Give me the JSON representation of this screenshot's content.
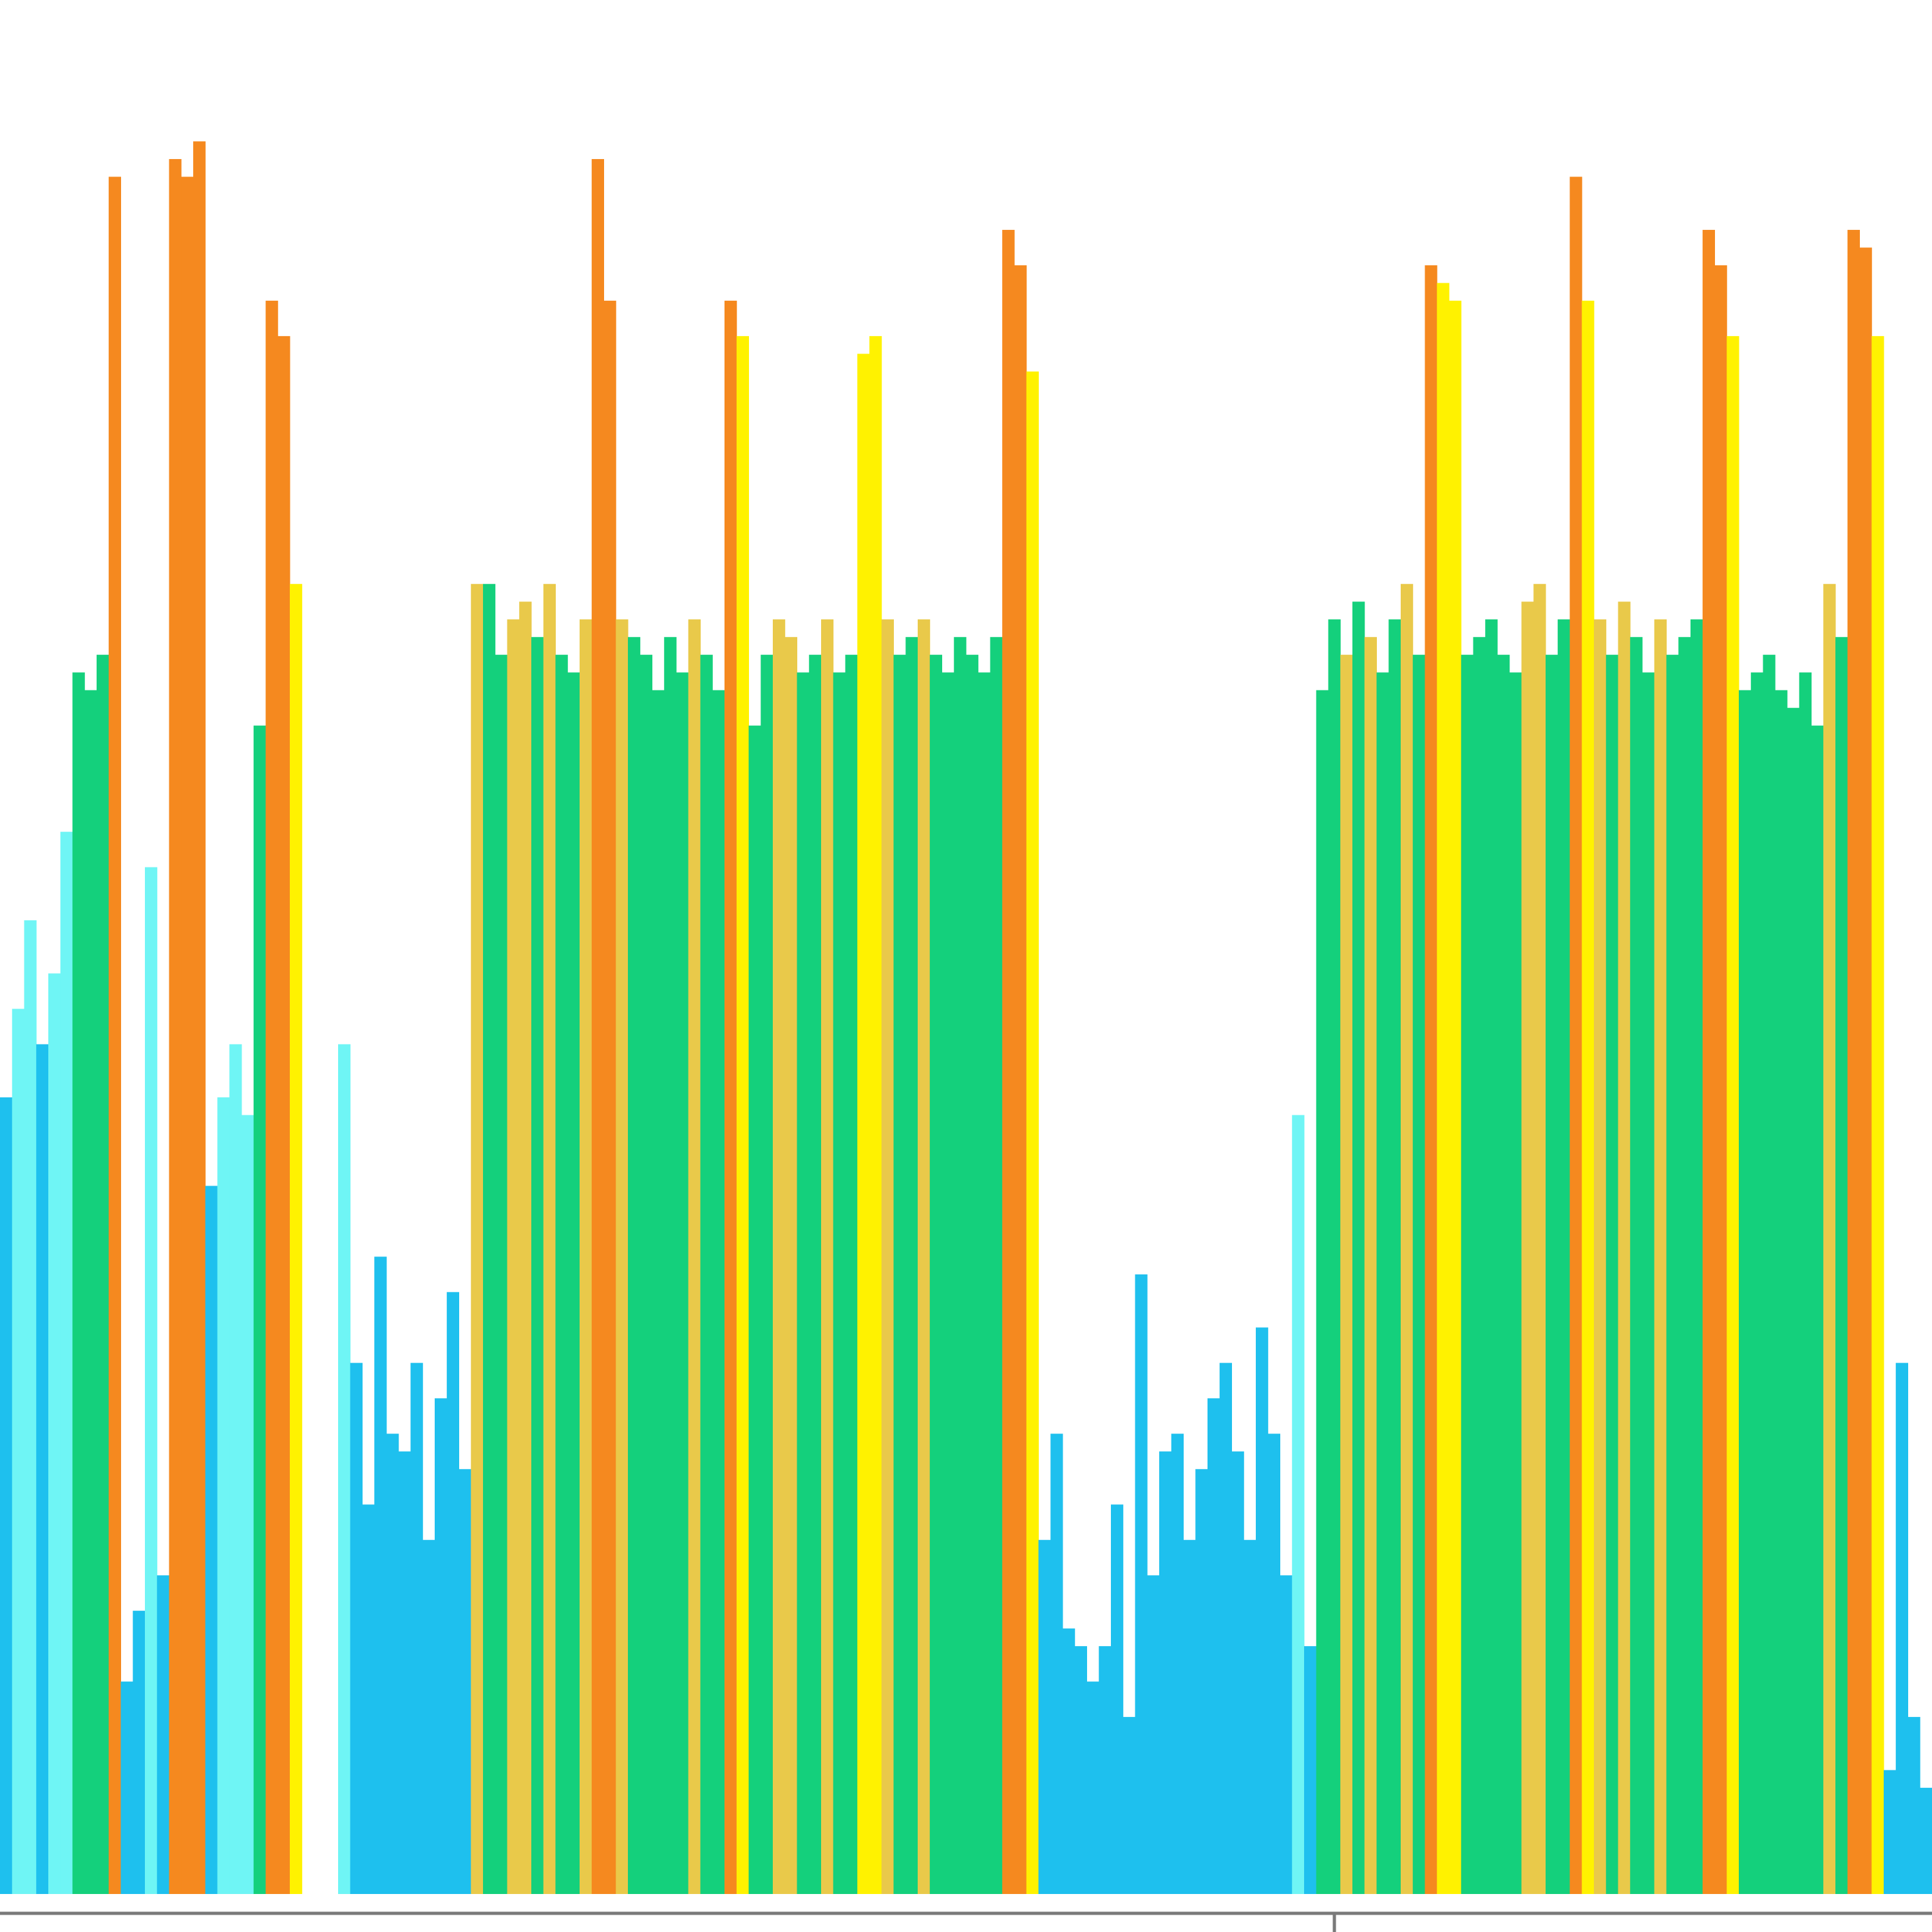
{
  "chart_data": {
    "type": "bar",
    "ylim": [
      0,
      100
    ],
    "values": [
      45,
      50,
      55,
      48,
      52,
      60,
      69,
      68,
      70,
      97,
      12,
      16,
      58,
      18,
      98,
      97,
      99,
      40,
      45,
      48,
      44,
      66,
      90,
      88,
      74,
      0,
      0,
      0,
      48,
      30,
      22,
      36,
      26,
      25,
      30,
      20,
      28,
      34,
      24,
      74,
      74,
      70,
      72,
      73,
      71,
      74,
      70,
      69,
      72,
      98,
      90,
      72,
      71,
      70,
      68,
      71,
      69,
      72,
      70,
      68,
      90,
      88,
      66,
      70,
      72,
      71,
      69,
      70,
      72,
      69,
      70,
      87,
      88,
      72,
      70,
      71,
      72,
      70,
      69,
      71,
      70,
      69,
      71,
      94,
      92,
      86,
      20,
      26,
      15,
      14,
      12,
      14,
      22,
      10,
      35,
      18,
      25,
      26,
      20,
      24,
      28,
      30,
      25,
      20,
      32,
      26,
      18,
      44,
      14,
      68,
      72,
      70,
      73,
      71,
      69,
      72,
      74,
      70,
      92,
      91,
      90,
      70,
      71,
      72,
      70,
      69,
      73,
      74,
      70,
      72,
      97,
      90,
      72,
      70,
      73,
      71,
      69,
      72,
      70,
      71,
      72,
      94,
      92,
      88,
      68,
      69,
      70,
      68,
      67,
      69,
      66,
      74,
      71,
      94,
      93,
      88,
      7,
      30,
      10,
      6
    ],
    "colors": [
      "#1ec0ee",
      "#6ff5f5",
      "#6ff5f5",
      "#1ec0ee",
      "#6ff5f5",
      "#6ff5f5",
      "#14d07c",
      "#14d07c",
      "#14d07c",
      "#f5891f",
      "#1ec0ee",
      "#1ec0ee",
      "#6ff5f5",
      "#1ec0ee",
      "#f5891f",
      "#f5891f",
      "#f5891f",
      "#1ec0ee",
      "#6ff5f5",
      "#6ff5f5",
      "#6ff5f5",
      "#14d07c",
      "#f5891f",
      "#f5891f",
      "#fff200",
      "#1ec0ee",
      "#1ec0ee",
      "#1ec0ee",
      "#6ff5f5",
      "#1ec0ee",
      "#1ec0ee",
      "#1ec0ee",
      "#1ec0ee",
      "#1ec0ee",
      "#1ec0ee",
      "#1ec0ee",
      "#1ec0ee",
      "#1ec0ee",
      "#1ec0ee",
      "#e9c94a",
      "#14d07c",
      "#14d07c",
      "#e9c94a",
      "#e9c94a",
      "#14d07c",
      "#e9c94a",
      "#14d07c",
      "#14d07c",
      "#e9c94a",
      "#f5891f",
      "#f5891f",
      "#e9c94a",
      "#14d07c",
      "#14d07c",
      "#14d07c",
      "#14d07c",
      "#14d07c",
      "#e9c94a",
      "#14d07c",
      "#14d07c",
      "#f5891f",
      "#fff200",
      "#14d07c",
      "#14d07c",
      "#e9c94a",
      "#e9c94a",
      "#14d07c",
      "#14d07c",
      "#e9c94a",
      "#14d07c",
      "#14d07c",
      "#fff200",
      "#fff200",
      "#e9c94a",
      "#14d07c",
      "#14d07c",
      "#e9c94a",
      "#14d07c",
      "#14d07c",
      "#14d07c",
      "#14d07c",
      "#14d07c",
      "#14d07c",
      "#f5891f",
      "#f5891f",
      "#fff200",
      "#1ec0ee",
      "#1ec0ee",
      "#1ec0ee",
      "#1ec0ee",
      "#1ec0ee",
      "#1ec0ee",
      "#1ec0ee",
      "#1ec0ee",
      "#1ec0ee",
      "#1ec0ee",
      "#1ec0ee",
      "#1ec0ee",
      "#1ec0ee",
      "#1ec0ee",
      "#1ec0ee",
      "#1ec0ee",
      "#1ec0ee",
      "#1ec0ee",
      "#1ec0ee",
      "#1ec0ee",
      "#1ec0ee",
      "#6ff5f5",
      "#1ec0ee",
      "#14d07c",
      "#14d07c",
      "#e9c94a",
      "#14d07c",
      "#e9c94a",
      "#14d07c",
      "#14d07c",
      "#e9c94a",
      "#14d07c",
      "#f5891f",
      "#fff200",
      "#fff200",
      "#14d07c",
      "#14d07c",
      "#14d07c",
      "#14d07c",
      "#14d07c",
      "#e9c94a",
      "#e9c94a",
      "#14d07c",
      "#14d07c",
      "#f5891f",
      "#fff200",
      "#e9c94a",
      "#14d07c",
      "#e9c94a",
      "#14d07c",
      "#14d07c",
      "#e9c94a",
      "#14d07c",
      "#14d07c",
      "#14d07c",
      "#f5891f",
      "#f5891f",
      "#fff200",
      "#14d07c",
      "#14d07c",
      "#14d07c",
      "#14d07c",
      "#14d07c",
      "#14d07c",
      "#14d07c",
      "#e9c94a",
      "#14d07c",
      "#f5891f",
      "#f5891f",
      "#fff200",
      "#1ec0ee",
      "#1ec0ee",
      "#1ec0ee",
      "#1ec0ee"
    ]
  }
}
